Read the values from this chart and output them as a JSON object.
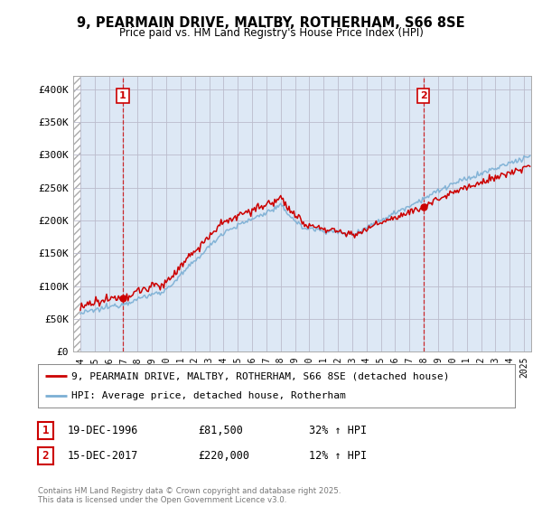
{
  "title_line1": "9, PEARMAIN DRIVE, MALTBY, ROTHERHAM, S66 8SE",
  "title_line2": "Price paid vs. HM Land Registry's House Price Index (HPI)",
  "ylim": [
    0,
    420000
  ],
  "yticks": [
    0,
    50000,
    100000,
    150000,
    200000,
    250000,
    300000,
    350000,
    400000
  ],
  "ytick_labels": [
    "£0",
    "£50K",
    "£100K",
    "£150K",
    "£200K",
    "£250K",
    "£300K",
    "£350K",
    "£400K"
  ],
  "sale1_date_num": 1996.97,
  "sale1_price": 81500,
  "sale2_date_num": 2017.96,
  "sale2_price": 220000,
  "line1_color": "#cc0000",
  "line2_color": "#7bafd4",
  "marker_color": "#cc0000",
  "grid_color": "#bbbbcc",
  "bg_color": "#ffffff",
  "chart_bg": "#dde8f5",
  "legend_label1": "9, PEARMAIN DRIVE, MALTBY, ROTHERHAM, S66 8SE (detached house)",
  "legend_label2": "HPI: Average price, detached house, Rotherham",
  "sale1_date_str": "19-DEC-1996",
  "sale1_price_str": "£81,500",
  "sale1_hpi_str": "32% ↑ HPI",
  "sale2_date_str": "15-DEC-2017",
  "sale2_price_str": "£220,000",
  "sale2_hpi_str": "12% ↑ HPI",
  "footer": "Contains HM Land Registry data © Crown copyright and database right 2025.\nThis data is licensed under the Open Government Licence v3.0.",
  "xmin": 1993.5,
  "xmax": 2025.5,
  "data_start": 1994.0
}
